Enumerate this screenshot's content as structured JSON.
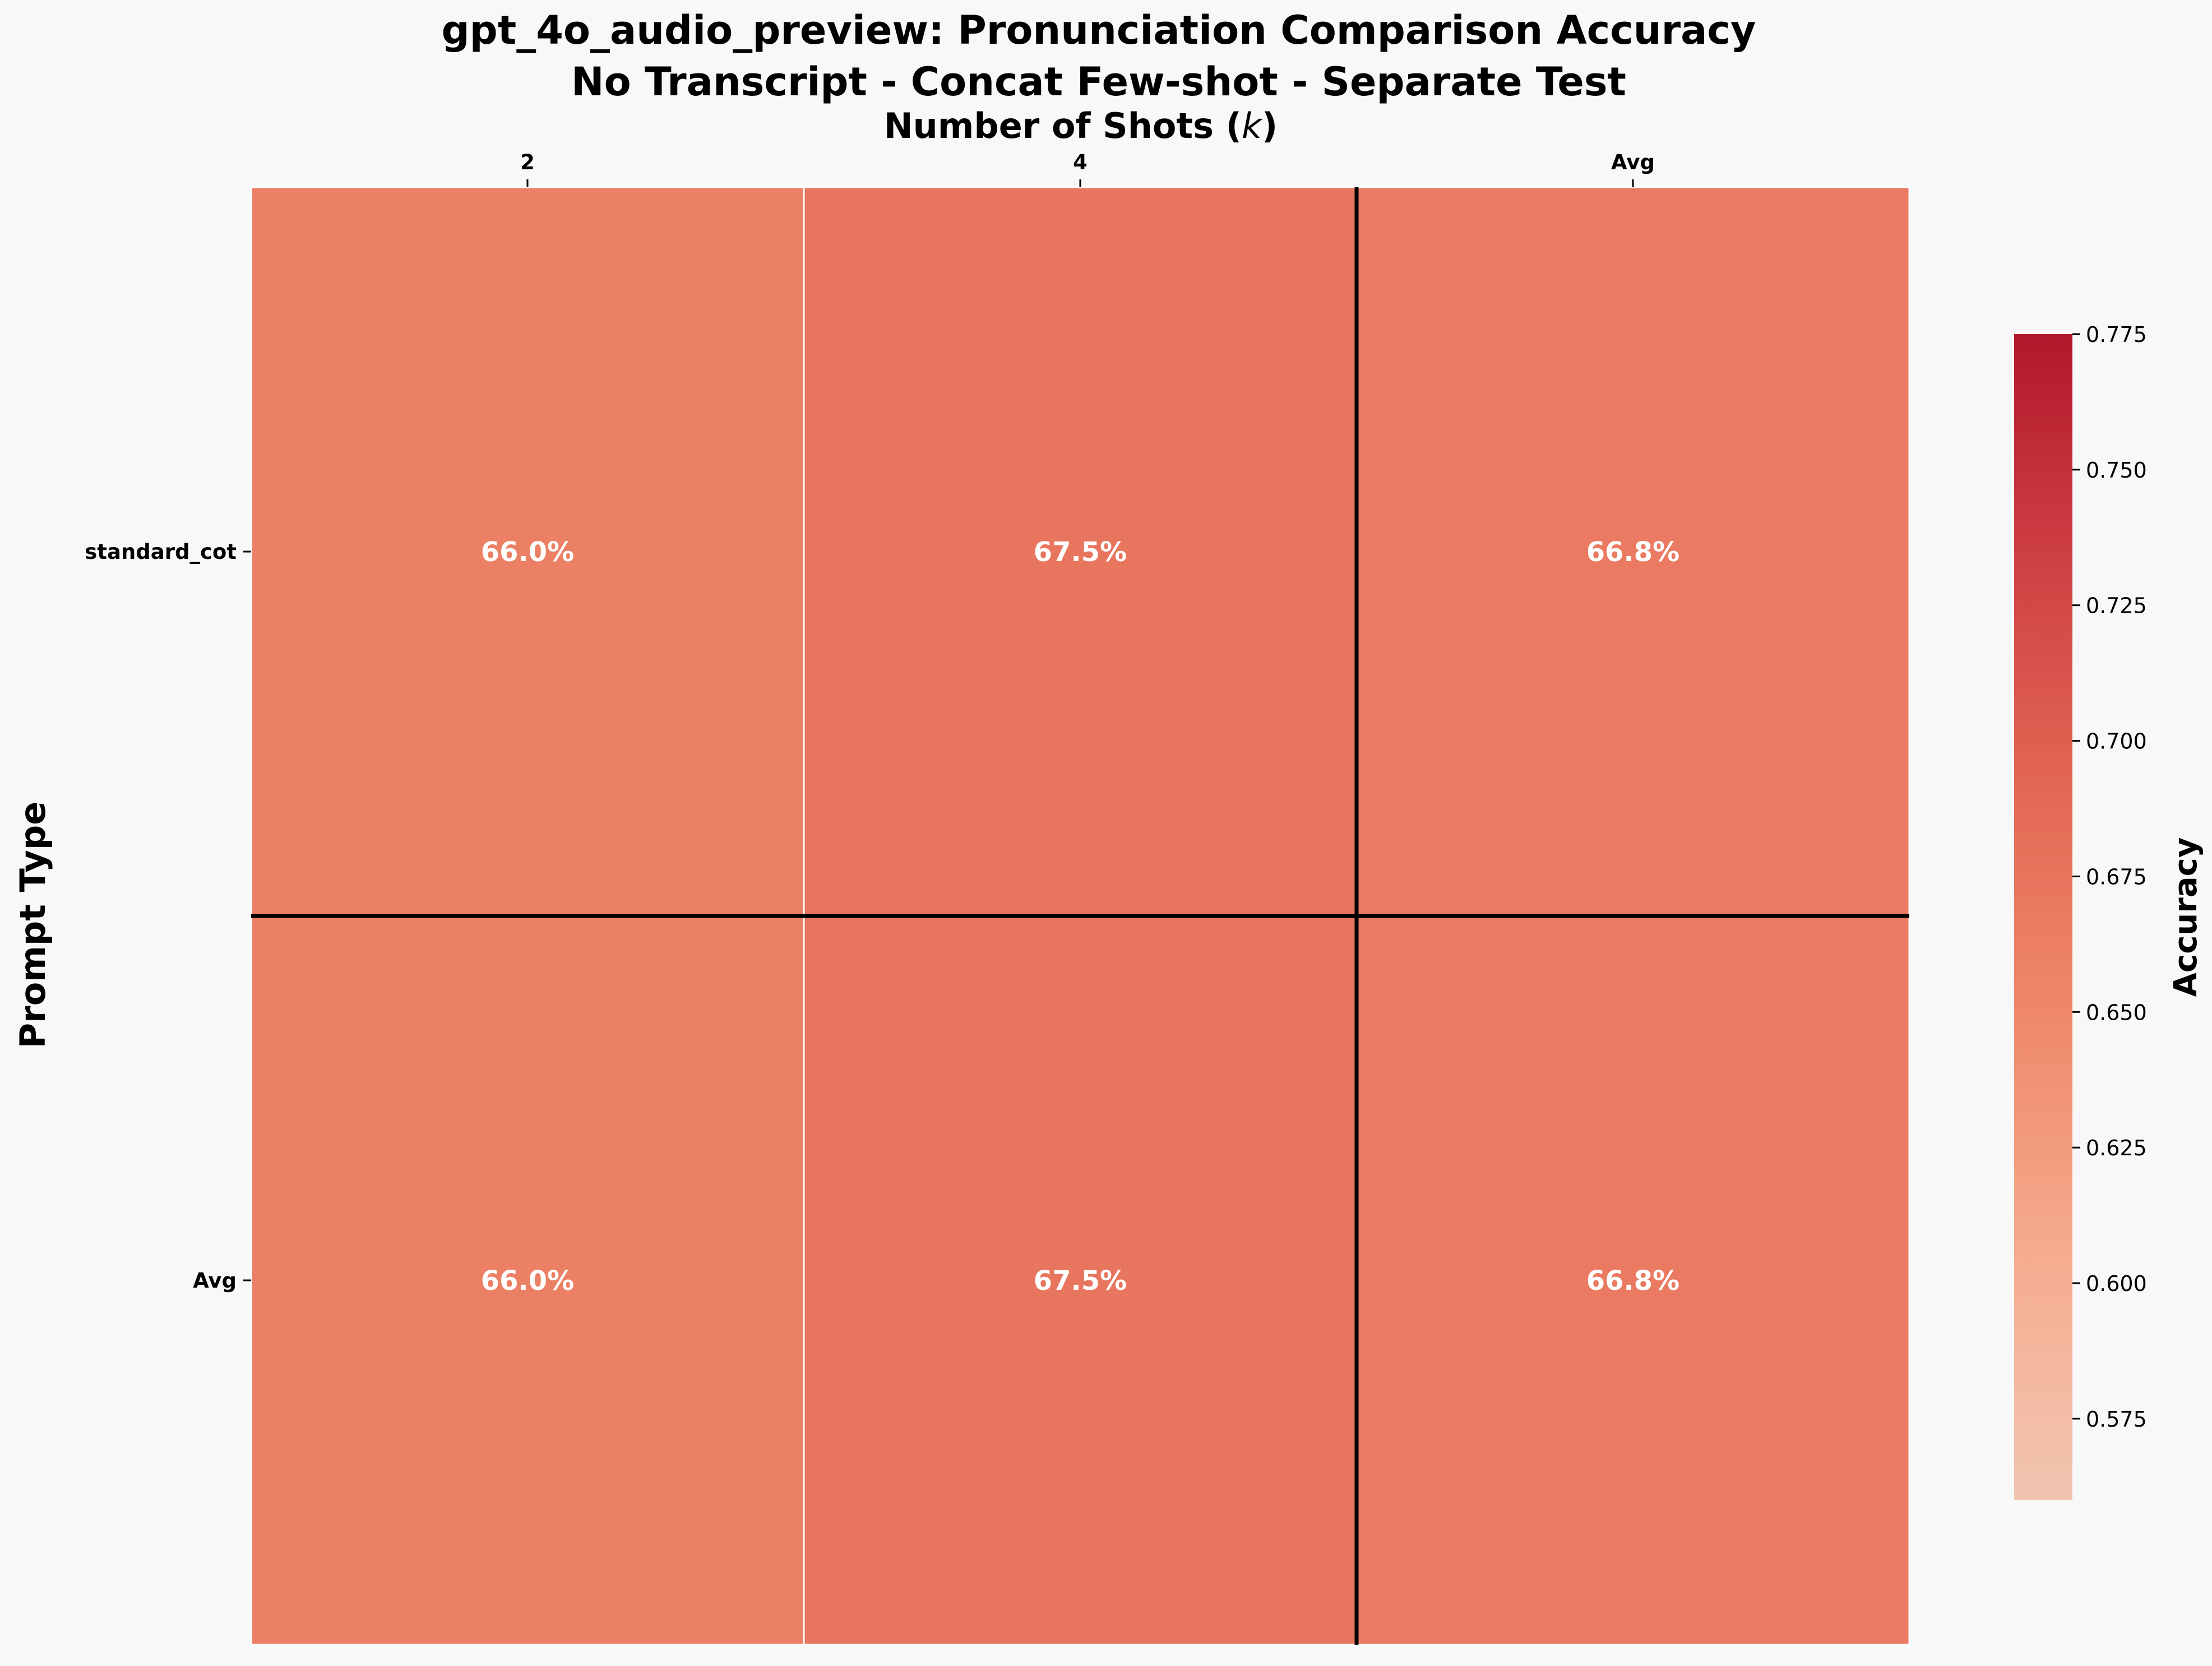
{
  "chart_data": {
    "type": "heatmap",
    "title": "gpt_4o_audio_preview: Pronunciation Comparison Accuracy",
    "subtitle": "No Transcript - Concat Few-shot - Separate Test",
    "xlabel": "Number of Shots (k)",
    "ylabel": "Prompt Type",
    "x_categories": [
      "2",
      "4",
      "Avg"
    ],
    "y_categories": [
      "standard_cot",
      "Avg"
    ],
    "values": [
      [
        0.66,
        0.675,
        0.668
      ],
      [
        0.66,
        0.675,
        0.668
      ]
    ],
    "cell_labels": [
      [
        "66.0%",
        "67.5%",
        "66.8%"
      ],
      [
        "66.0%",
        "67.5%",
        "66.8%"
      ]
    ],
    "colorbar": {
      "label": "Accuracy",
      "range": [
        0.56,
        0.775
      ],
      "ticks": [
        "0.575",
        "0.600",
        "0.625",
        "0.650",
        "0.675",
        "0.700",
        "0.725",
        "0.750",
        "0.775"
      ],
      "colors": [
        "#f2c5b1",
        "#f5ad90",
        "#f08b6d",
        "#e46a55",
        "#cf4144",
        "#b2182b"
      ]
    },
    "separators": "before last row and last column",
    "cell_color": "#ffffff",
    "separator_color": "#000000"
  }
}
